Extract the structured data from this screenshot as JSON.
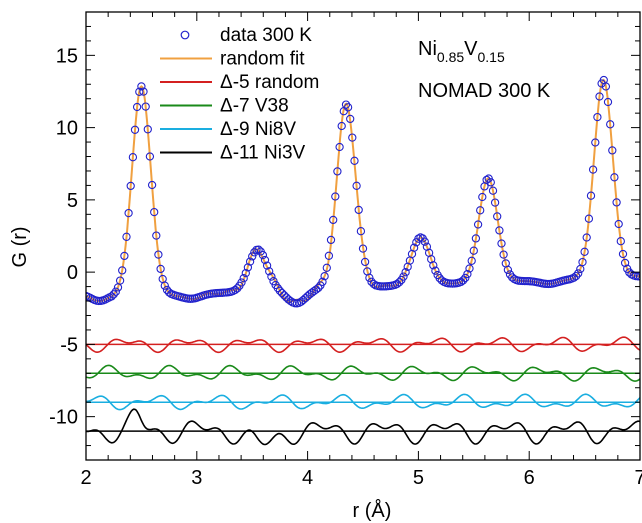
{
  "chart_data": {
    "type": "line",
    "xlabel": "r (Å)",
    "ylabel": "G (r)",
    "xlim": [
      2,
      7
    ],
    "ylim": [
      -13,
      18
    ],
    "x_ticks": [
      2,
      3,
      4,
      5,
      6,
      7
    ],
    "y_ticks": [
      -10,
      -5,
      0,
      5,
      10,
      15
    ],
    "legend_position": "top-left",
    "annotation": {
      "formula": [
        "Ni",
        "0.85",
        "V",
        "0.15"
      ],
      "text": "NOMAD 300 K"
    },
    "peaks": [
      {
        "r": 2.5,
        "g": 13.3
      },
      {
        "r": 2.95,
        "g": -1.8
      },
      {
        "r": 3.55,
        "g": 1.7
      },
      {
        "r": 3.9,
        "g": -2.9
      },
      {
        "r": 4.35,
        "g": 11.5
      },
      {
        "r": 5.02,
        "g": 2.1
      },
      {
        "r": 5.63,
        "g": 6.0
      },
      {
        "r": 6.18,
        "g": -1.7
      },
      {
        "r": 6.67,
        "g": 12.5
      }
    ],
    "series": [
      {
        "name": "data 300 K",
        "color": "#2222cc",
        "marker": "circle"
      },
      {
        "name": "random fit",
        "color": "#f0a040"
      },
      {
        "name": "Δ-5 random",
        "color": "#d42020",
        "offset": -5
      },
      {
        "name": "Δ-7 V38",
        "color": "#1a8a1a",
        "offset": -7
      },
      {
        "name": "Δ-9 Ni8V",
        "color": "#1aaee0",
        "offset": -9
      },
      {
        "name": "Δ-11 Ni3V",
        "color": "#000000",
        "offset": -11
      }
    ]
  }
}
